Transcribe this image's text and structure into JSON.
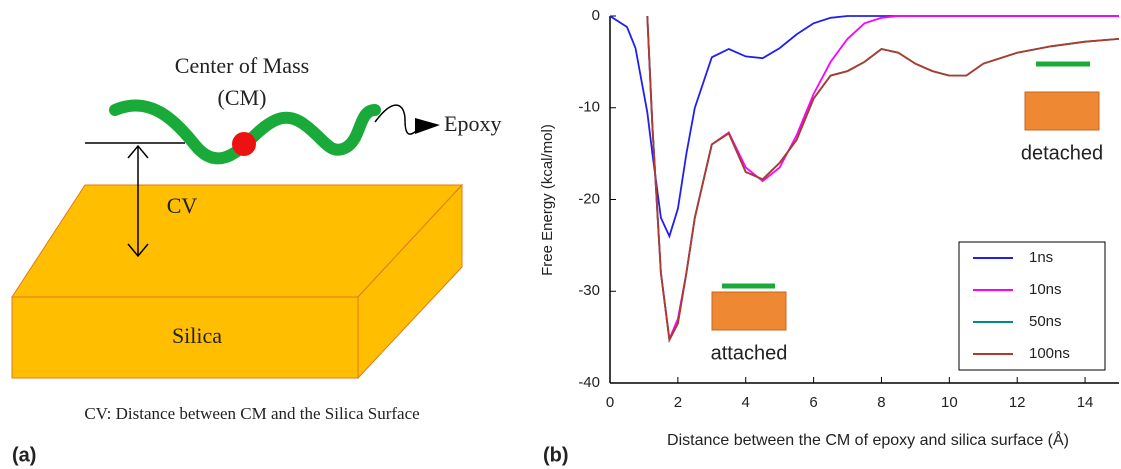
{
  "figure": {
    "panel_labels": [
      "(a)",
      "(b)"
    ]
  },
  "diagram": {
    "cm_line1": "Center of Mass",
    "cm_line2": "(CM)",
    "epoxy": "Epoxy",
    "cv": "CV",
    "silica": "Silica",
    "caption": "CV: Distance between CM and the Silica Surface"
  },
  "chart_data": {
    "type": "line",
    "x_label": "Distance between the CM of epoxy and silica surface (Å)",
    "y_label": "Free Energy (kcal/mol)",
    "xlim": [
      0,
      15
    ],
    "ylim": [
      -40,
      0
    ],
    "xticks": [
      0,
      2,
      4,
      6,
      8,
      10,
      12,
      14
    ],
    "yticks": [
      0,
      -10,
      -20,
      -30,
      -40
    ],
    "legend": "lower right",
    "annotations": [
      "attached",
      "detached"
    ],
    "x": [
      0,
      0.5,
      0.75,
      1.1,
      1.25,
      1.5,
      1.75,
      2,
      2.25,
      2.5,
      3,
      3.5,
      4,
      4.5,
      5,
      5.5,
      6,
      6.5,
      7,
      7.5,
      8,
      8.5,
      9,
      9.5,
      10,
      10.5,
      11,
      12,
      13,
      14,
      15
    ],
    "series": [
      {
        "name": "1ns",
        "color": "#2020ee",
        "values": [
          0,
          -1.2,
          -3.5,
          -10.5,
          -15,
          -22,
          -24,
          -21,
          -15,
          -10,
          -4.5,
          -3.6,
          -4.4,
          -4.6,
          -3.5,
          -2,
          -0.8,
          -0.2,
          0,
          0,
          0,
          0,
          0,
          0,
          0,
          0,
          0,
          0,
          0,
          0,
          0
        ]
      },
      {
        "name": "10ns",
        "color": "#ff00ff",
        "values": [
          null,
          null,
          null,
          0,
          -12,
          -28,
          -35.2,
          -33,
          -28,
          -22,
          -14,
          -12.7,
          -16.5,
          -18,
          -16.5,
          -13,
          -8.5,
          -5,
          -2.5,
          -0.8,
          -0.2,
          0,
          0,
          0,
          0,
          0,
          0,
          0,
          0,
          0,
          0
        ]
      },
      {
        "name": "50ns",
        "color": "#008b8b",
        "values": [
          null,
          null,
          null,
          0,
          -12,
          -28,
          -35.3,
          -33.5,
          -28,
          -22,
          -14,
          -12.8,
          -17,
          -17.8,
          -16,
          -13.5,
          -9,
          -6.5,
          -6,
          -5,
          -3.6,
          -4,
          -5.2,
          -6,
          -6.5,
          -6.5,
          -5.2,
          -4,
          -3.3,
          -2.8,
          -2.5
        ]
      },
      {
        "name": "100ns",
        "color": "#b03a2e",
        "values": [
          null,
          null,
          null,
          0,
          -12,
          -28,
          -35.3,
          -33.5,
          -28,
          -22,
          -14,
          -12.8,
          -17,
          -17.8,
          -16,
          -13.5,
          -9,
          -6.5,
          -6,
          -5,
          -3.6,
          -4,
          -5.2,
          -6,
          -6.5,
          -6.5,
          -5.2,
          -4,
          -3.3,
          -2.8,
          -2.5
        ]
      }
    ]
  }
}
